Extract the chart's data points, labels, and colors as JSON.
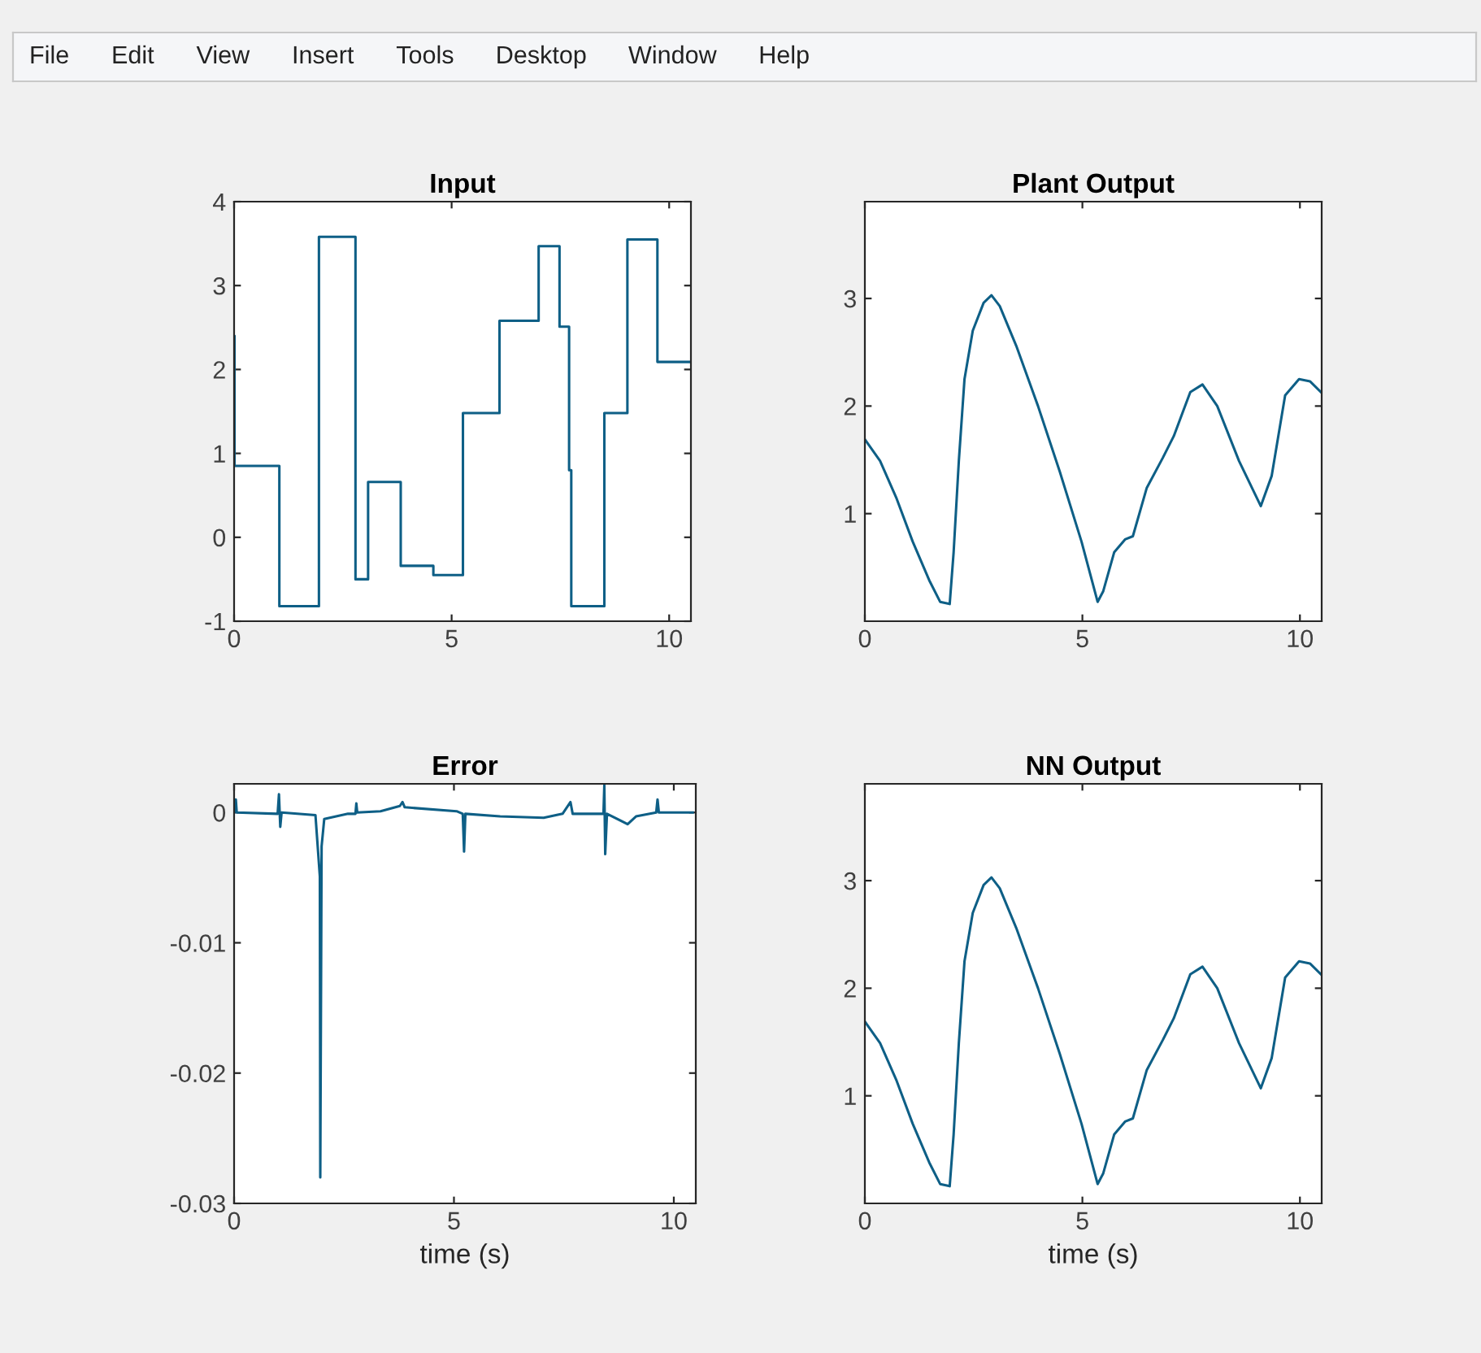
{
  "chart_data": [
    {
      "type": "other",
      "annotations": [
        "File",
        "Edit",
        "View",
        "Insert",
        "Tools",
        "Desktop",
        "Window",
        "Help"
      ]
    },
    {
      "type": "step",
      "title": "Input",
      "xlim": [
        0,
        10.5
      ],
      "ylim": [
        -1,
        4
      ],
      "xticks": [
        0,
        5,
        10
      ],
      "yticks": [
        -1,
        0,
        1,
        2,
        3,
        4
      ],
      "grid": false,
      "series": [
        {
          "color": "#0e5f86",
          "x": [
            0,
            0,
            0.01,
            1.04,
            1.95,
            2.79,
            3.08,
            3.83,
            4.58,
            5.26,
            6.1,
            7.0,
            7.48,
            7.7,
            7.75,
            8.51,
            9.04,
            9.73,
            10.5
          ],
          "values": [
            0.85,
            2.4,
            0.85,
            -0.82,
            3.58,
            -0.5,
            0.66,
            -0.34,
            -0.45,
            1.48,
            2.58,
            3.47,
            2.51,
            0.8,
            -0.82,
            1.48,
            3.55,
            2.09,
            2.09
          ]
        }
      ]
    },
    {
      "type": "line",
      "title": "Plant Output",
      "xlim": [
        0,
        10.5
      ],
      "ylim": [
        0,
        3.9
      ],
      "xticks": [
        0,
        5,
        10
      ],
      "yticks": [
        1,
        2,
        3
      ],
      "grid": false,
      "series": [
        {
          "color": "#0e5f86",
          "x": [
            0,
            0.35,
            0.73,
            1.1,
            1.48,
            1.73,
            1.95,
            2.04,
            2.16,
            2.29,
            2.48,
            2.73,
            2.91,
            3.1,
            3.48,
            3.98,
            4.48,
            4.98,
            5.35,
            5.48,
            5.73,
            5.98,
            6.16,
            6.48,
            6.85,
            7.1,
            7.48,
            7.76,
            8.1,
            8.6,
            9.1,
            9.35,
            9.66,
            9.98,
            10.23,
            10.48
          ],
          "values": [
            1.69,
            1.49,
            1.14,
            0.74,
            0.38,
            0.18,
            0.16,
            0.64,
            1.49,
            2.25,
            2.7,
            2.96,
            3.03,
            2.93,
            2.56,
            2.0,
            1.39,
            0.74,
            0.18,
            0.28,
            0.64,
            0.76,
            0.79,
            1.24,
            1.52,
            1.72,
            2.13,
            2.2,
            2.0,
            1.49,
            1.07,
            1.35,
            2.1,
            2.25,
            2.23,
            2.13
          ]
        }
      ]
    },
    {
      "type": "line",
      "title": "Error",
      "xlabel": "time (s)",
      "xlim": [
        0,
        10.5
      ],
      "ylim": [
        -0.03,
        0.0022
      ],
      "xticks": [
        0,
        5,
        10
      ],
      "yticks": [
        -0.03,
        -0.02,
        -0.01,
        0
      ],
      "grid": false,
      "series": [
        {
          "color": "#0e5f86",
          "x": [
            0,
            0.04,
            0.06,
            0.99,
            1.02,
            1.05,
            1.08,
            1.85,
            1.95,
            1.96,
            1.99,
            2.05,
            2.59,
            2.76,
            2.78,
            2.8,
            3.33,
            3.77,
            3.83,
            3.88,
            5.06,
            5.2,
            5.23,
            5.26,
            6.05,
            7.04,
            7.47,
            7.65,
            7.7,
            8.4,
            8.42,
            8.44,
            8.48,
            8.95,
            9.14,
            9.6,
            9.63,
            9.66,
            10.43
          ],
          "values": [
            0,
            0.001,
            0,
            -0.0001,
            0.0014,
            -0.0011,
            0,
            -0.0002,
            -0.0049,
            -0.028,
            -0.0026,
            -0.0005,
            -0.0001,
            -0.0001,
            0.0007,
            0,
            0.0001,
            0.0005,
            0.0008,
            0.0004,
            0.0001,
            -0.0001,
            -0.003,
            -0.0001,
            -0.0003,
            -0.0004,
            -0.0001,
            0.0008,
            -0.0001,
            -0.0001,
            0.0021,
            -0.0032,
            -0.0001,
            -0.0009,
            -0.0003,
            0,
            0.001,
            0,
            0
          ]
        }
      ]
    },
    {
      "type": "line",
      "title": "NN Output",
      "xlabel": "time (s)",
      "xlim": [
        0,
        10.5
      ],
      "ylim": [
        0,
        3.9
      ],
      "xticks": [
        0,
        5,
        10
      ],
      "yticks": [
        1,
        2,
        3
      ],
      "grid": false,
      "series": [
        {
          "color": "#0e5f86",
          "x": [
            0,
            0.35,
            0.73,
            1.1,
            1.48,
            1.73,
            1.95,
            2.04,
            2.16,
            2.29,
            2.48,
            2.73,
            2.91,
            3.1,
            3.48,
            3.98,
            4.48,
            4.98,
            5.35,
            5.48,
            5.73,
            5.98,
            6.16,
            6.48,
            6.85,
            7.1,
            7.48,
            7.76,
            8.1,
            8.6,
            9.1,
            9.35,
            9.66,
            9.98,
            10.23,
            10.48
          ],
          "values": [
            1.69,
            1.49,
            1.14,
            0.74,
            0.38,
            0.18,
            0.16,
            0.64,
            1.49,
            2.25,
            2.7,
            2.96,
            3.03,
            2.93,
            2.56,
            2.0,
            1.39,
            0.74,
            0.18,
            0.28,
            0.64,
            0.76,
            0.79,
            1.24,
            1.52,
            1.72,
            2.13,
            2.2,
            2.0,
            1.49,
            1.07,
            1.35,
            2.1,
            2.25,
            2.23,
            2.13
          ]
        }
      ]
    }
  ]
}
